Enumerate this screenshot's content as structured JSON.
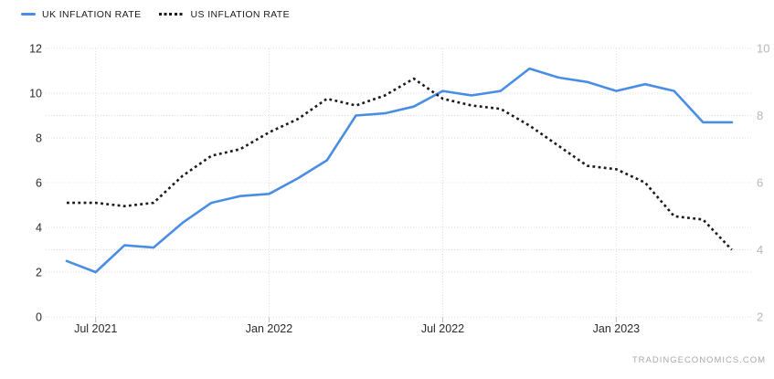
{
  "legend": {
    "items": [
      {
        "id": "uk",
        "label": "UK INFLATION RATE",
        "swatch": "solid-line"
      },
      {
        "id": "us",
        "label": "US INFLATION RATE",
        "swatch": "dotted-line"
      }
    ]
  },
  "watermark": {
    "text": "TRADINGECONOMICS.COM"
  },
  "colors": {
    "uk_line": "#4a8ee4",
    "us_line": "#1a1a1a",
    "grid": "#dcdcdc",
    "tick_mark": "#c0c0c0",
    "left_axis_text": "#2b2b2b",
    "right_axis_text": "#b3b8bd",
    "x_axis_text": "#2b2b2b",
    "background": "#ffffff"
  },
  "chart_data": {
    "type": "line",
    "title": "",
    "xlabel": "",
    "ylabel_left": "",
    "ylabel_right": "",
    "grid": "dotted",
    "legend_position": "top-left",
    "x": [
      "Jun 2021",
      "Jul 2021",
      "Aug 2021",
      "Sep 2021",
      "Oct 2021",
      "Nov 2021",
      "Dec 2021",
      "Jan 2022",
      "Feb 2022",
      "Mar 2022",
      "Apr 2022",
      "May 2022",
      "Jun 2022",
      "Jul 2022",
      "Aug 2022",
      "Sep 2022",
      "Oct 2022",
      "Nov 2022",
      "Dec 2022",
      "Jan 2023",
      "Feb 2023",
      "Mar 2023",
      "Apr 2023",
      "May 2023"
    ],
    "x_tick_labels": [
      "Jul 2021",
      "Jan 2022",
      "Jul 2022",
      "Jan 2023"
    ],
    "x_tick_indices": [
      1,
      7,
      13,
      19
    ],
    "left_axis": {
      "min": 0,
      "max": 12,
      "ticks": [
        0,
        2,
        4,
        6,
        8,
        10,
        12
      ]
    },
    "right_axis": {
      "min": 2,
      "max": 10,
      "ticks": [
        2,
        4,
        6,
        8,
        10
      ]
    },
    "series": [
      {
        "id": "uk-inflation-line",
        "name": "UK INFLATION RATE",
        "axis": "left",
        "style": "solid",
        "color": "#4a8ee4",
        "values": [
          2.5,
          2.0,
          3.2,
          3.1,
          4.2,
          5.1,
          5.4,
          5.5,
          6.2,
          7.0,
          9.0,
          9.1,
          9.4,
          10.1,
          9.9,
          10.1,
          11.1,
          10.7,
          10.5,
          10.1,
          10.4,
          10.1,
          8.7,
          8.7
        ]
      },
      {
        "id": "us-inflation-line",
        "name": "US INFLATION RATE",
        "axis": "right",
        "style": "dotted",
        "color": "#1a1a1a",
        "values": [
          5.4,
          5.4,
          5.3,
          5.4,
          6.2,
          6.8,
          7.0,
          7.5,
          7.9,
          8.5,
          8.3,
          8.6,
          9.1,
          8.5,
          8.3,
          8.2,
          7.7,
          7.1,
          6.5,
          6.4,
          6.0,
          5.0,
          4.9,
          4.0
        ]
      }
    ]
  }
}
